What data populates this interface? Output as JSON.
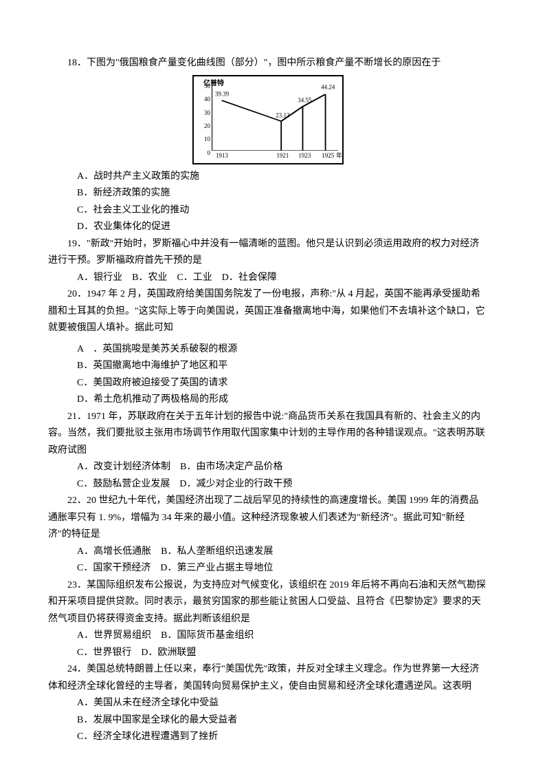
{
  "q18": {
    "stem": "18．下图为\"俄国粮食产量变化曲线图（部分）\"，图中所示粮食产量不断增长的原因在于",
    "options": {
      "A": "A．战时共产主义政策的实施",
      "B": "B．新经济政策的实施",
      "C": "C．社会主义工业化的推动",
      "D": "D．农业集体化的促进"
    }
  },
  "q19": {
    "stem": "19．\"新政\"开始时，罗斯福心中并没有一幅清晰的蓝图。他只是认识到必须运用政府的权力对经济进行干预。罗斯福政府首先干预的是",
    "options": "A．银行业　B．农业　C．工业　D．社会保障"
  },
  "q20": {
    "stem": "20．1947 年 2 月，英国政府给美国国务院发了一份电报，声称:\"从 4 月起，英国不能再承受援助希腊和土耳其的负担。\"这实际上等于向美国说，英国正准备撤离地中海，如果他们不去填补这个缺口，它就要被俄国人填补。据此可知",
    "options": {
      "A": "A　．英国挑唆是美苏关系破裂的根源",
      "B": "B．英国撤离地中海维护了地区和平",
      "C": "C．美国政府被迫接受了英国的请求",
      "D": "D．希土危机推动了两极格局的形成"
    }
  },
  "q21": {
    "stem": "21．1971 年，苏联政府在关于五年计划的报告中说:\"商品货币关系在我国具有新的、社会主义的内容。当然，我们要批驳主张用市场调节作用取代国家集中计划的主导作用的各种错误观点。\"这表明苏联政府试图",
    "optionsLine1": "A．改变计划经济体制　B．由市场决定产品价格",
    "optionsLine2": "C．鼓励私营企业发展　D．减少对企业的行政干预"
  },
  "q22": {
    "stem": "22．20 世纪九十年代，美国经济出现了二战后罕见的持续性的高速度增长。美国 1999 年的消费品通胀率只有 1. 9%，增幅为 34 年来的最小值。这种经济现象被人们表述为\"新经济\"。据此可知\"新经济\"的特征是",
    "optionsLine1": "A．高增长低通胀　B．私人垄断组织迅速发展",
    "optionsLine2": "C．国家干预经济　D．第三产业占据主导地位"
  },
  "q23": {
    "stem": "23．某国际组织发布公报说，为支持应对气候变化，该组织在 2019 年后将不再向石油和天然气勘探和开采项目提供贷款。同时表示，最贫穷国家的那些能让贫困人口受益、且符合《巴黎协定》要求的天然气项目仍将获得资金支持。据此判断该组织是",
    "optionsLine1": "A．世界贸易组织　B．国际货币基金组织",
    "optionsLine2": "C．世界银行　D．欧洲联盟"
  },
  "q24": {
    "stem": "24．美国总统特朗普上任以来，奉行\"美国优先\"政策，并反对全球主义理念。作为世界第一大经济体和经济全球化曾经的主导者，美国转向贸易保护主义，使自由贸易和经济全球化遭遇逆风。这表明",
    "options": {
      "A": "A．美国从未在经济全球化中受益",
      "B": "B．发展中国家是全球化的最大受益者",
      "C": "C．经济全球化进程遭遇到了挫折"
    }
  },
  "chart": {
    "type": "line",
    "y_unit": "亿普特",
    "x_unit": "年",
    "y_ticks": [
      0,
      10,
      20,
      30,
      40,
      50
    ],
    "x_ticks": [
      "1913",
      "1921",
      "1923",
      "1925"
    ],
    "points": [
      {
        "year": "1913",
        "value": 39.39
      },
      {
        "year": "1921",
        "value": 23.13
      },
      {
        "year": "1923",
        "value": 34.55
      },
      {
        "year": "1925",
        "value": 44.24
      }
    ],
    "line_color": "#000000",
    "background_color": "#ffffff",
    "axis_color": "#000000",
    "label_fontsize": 9,
    "ylim": [
      0,
      55
    ],
    "x_positions": {
      "1913": 0.08,
      "1921": 0.55,
      "1923": 0.72,
      "1925": 0.9
    }
  }
}
